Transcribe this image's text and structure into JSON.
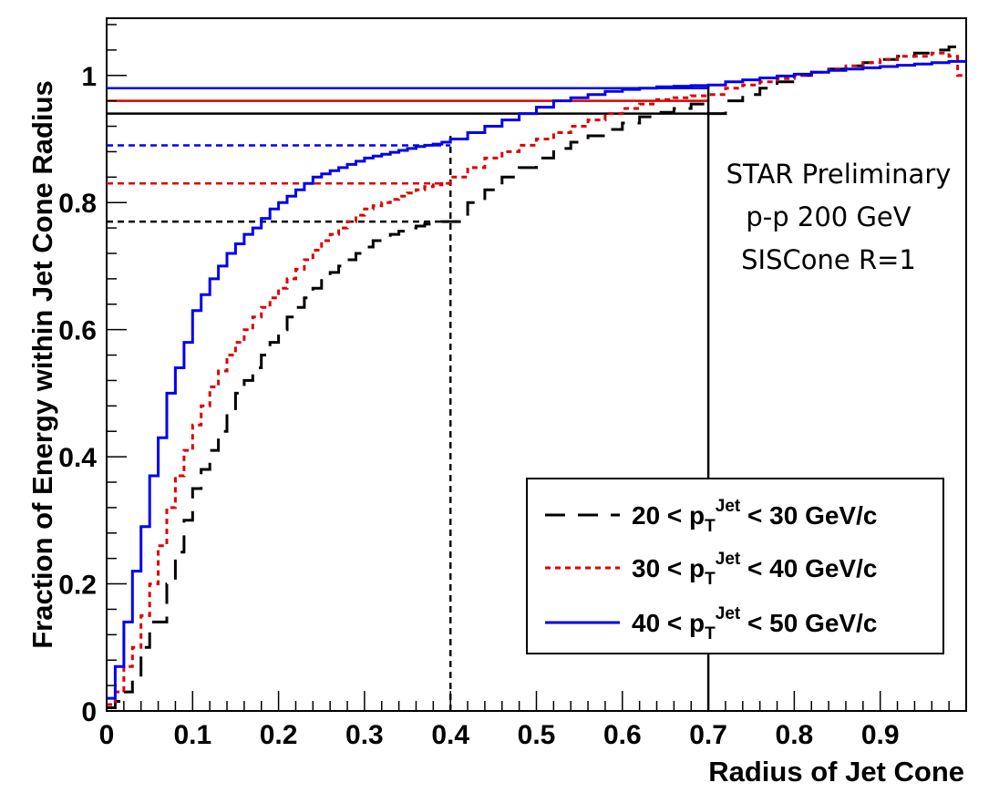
{
  "chart_data": {
    "type": "line",
    "title": "",
    "xlabel": "Radius of Jet Cone",
    "ylabel": "Fraction of Energy within Jet Cone Radius",
    "xlim": [
      0,
      1.0
    ],
    "ylim": [
      0,
      1.09
    ],
    "x_ticks": [
      0,
      0.1,
      0.2,
      0.3,
      0.4,
      0.5,
      0.6,
      0.7,
      0.8,
      0.9
    ],
    "x_tick_labels": [
      "0",
      "0.1",
      "0.2",
      "0.3",
      "0.4",
      "0.5",
      "0.6",
      "0.7",
      "0.8",
      "0.9"
    ],
    "y_ticks": [
      0,
      0.2,
      0.4,
      0.6,
      0.8,
      1
    ],
    "y_tick_labels": [
      "0",
      "0.2",
      "0.4",
      "0.6",
      "0.8",
      "1"
    ],
    "grid": false,
    "legend_position": "bottom-right",
    "annotation": [
      "STAR Preliminary",
      "p-p 200 GeV",
      "SISCone R=1"
    ],
    "series": [
      {
        "legend_prefix": "20 < p",
        "legend_sub": "T",
        "legend_sup": "Jet",
        "legend_suffix": " < 30 GeV/c",
        "color": "#000000",
        "dash": "22,14",
        "x": [
          0,
          0.01,
          0.02,
          0.03,
          0.04,
          0.05,
          0.06,
          0.07,
          0.08,
          0.09,
          0.1,
          0.11,
          0.12,
          0.13,
          0.14,
          0.15,
          0.16,
          0.17,
          0.18,
          0.19,
          0.2,
          0.21,
          0.22,
          0.23,
          0.24,
          0.25,
          0.26,
          0.27,
          0.28,
          0.29,
          0.3,
          0.31,
          0.32,
          0.33,
          0.34,
          0.35,
          0.36,
          0.37,
          0.38,
          0.39,
          0.4,
          0.42,
          0.44,
          0.46,
          0.48,
          0.5,
          0.52,
          0.54,
          0.56,
          0.58,
          0.6,
          0.62,
          0.64,
          0.66,
          0.68,
          0.7,
          0.72,
          0.74,
          0.76,
          0.78,
          0.8,
          0.82,
          0.84,
          0.86,
          0.88,
          0.9,
          0.92,
          0.94,
          0.96,
          0.98,
          0.99
        ],
        "y": [
          0.005,
          0.015,
          0.03,
          0.05,
          0.1,
          0.14,
          0.14,
          0.2,
          0.25,
          0.3,
          0.35,
          0.38,
          0.41,
          0.44,
          0.47,
          0.5,
          0.52,
          0.54,
          0.56,
          0.58,
          0.6,
          0.62,
          0.635,
          0.65,
          0.665,
          0.68,
          0.69,
          0.7,
          0.71,
          0.72,
          0.73,
          0.74,
          0.745,
          0.75,
          0.755,
          0.76,
          0.763,
          0.766,
          0.768,
          0.77,
          0.77,
          0.8,
          0.82,
          0.84,
          0.855,
          0.87,
          0.885,
          0.895,
          0.905,
          0.915,
          0.925,
          0.935,
          0.942,
          0.948,
          0.955,
          0.94,
          0.96,
          0.97,
          0.98,
          0.99,
          1.0,
          1.005,
          1.01,
          1.015,
          1.02,
          1.025,
          1.03,
          1.035,
          1.04,
          1.045,
          1.045
        ],
        "reference_level": 0.77,
        "reference_x": 0.4
      },
      {
        "legend_prefix": "30 < p",
        "legend_sub": "T",
        "legend_sup": "Jet",
        "legend_suffix": " < 40 GeV/c",
        "color": "#dd0000",
        "dash": "6,5",
        "x": [
          0,
          0.01,
          0.02,
          0.03,
          0.04,
          0.05,
          0.06,
          0.07,
          0.08,
          0.09,
          0.1,
          0.11,
          0.12,
          0.13,
          0.14,
          0.15,
          0.16,
          0.17,
          0.18,
          0.19,
          0.2,
          0.21,
          0.22,
          0.23,
          0.24,
          0.25,
          0.26,
          0.27,
          0.28,
          0.29,
          0.3,
          0.31,
          0.32,
          0.33,
          0.34,
          0.35,
          0.36,
          0.37,
          0.38,
          0.39,
          0.4,
          0.42,
          0.44,
          0.46,
          0.48,
          0.5,
          0.52,
          0.54,
          0.56,
          0.58,
          0.6,
          0.62,
          0.64,
          0.66,
          0.68,
          0.7,
          0.72,
          0.74,
          0.76,
          0.78,
          0.8,
          0.82,
          0.84,
          0.86,
          0.88,
          0.9,
          0.92,
          0.94,
          0.96,
          0.98,
          0.99
        ],
        "y": [
          0.01,
          0.03,
          0.07,
          0.1,
          0.15,
          0.2,
          0.26,
          0.32,
          0.37,
          0.41,
          0.45,
          0.48,
          0.51,
          0.535,
          0.56,
          0.58,
          0.6,
          0.62,
          0.635,
          0.65,
          0.665,
          0.68,
          0.695,
          0.71,
          0.725,
          0.74,
          0.75,
          0.76,
          0.77,
          0.78,
          0.79,
          0.795,
          0.8,
          0.805,
          0.81,
          0.815,
          0.82,
          0.825,
          0.828,
          0.83,
          0.84,
          0.855,
          0.87,
          0.88,
          0.89,
          0.9,
          0.91,
          0.92,
          0.93,
          0.94,
          0.948,
          0.955,
          0.962,
          0.965,
          0.968,
          0.97,
          0.98,
          0.985,
          0.99,
          0.995,
          1.0,
          1.005,
          1.01,
          1.015,
          1.02,
          1.025,
          1.03,
          1.03,
          1.035,
          1.03,
          1.0
        ],
        "reference_level": 0.83,
        "reference_x": 0.4
      },
      {
        "legend_prefix": "40 < p",
        "legend_sub": "T",
        "legend_sup": "Jet",
        "legend_suffix": " < 50 GeV/c",
        "color": "#0000ee",
        "dash": "",
        "x": [
          0,
          0.01,
          0.02,
          0.03,
          0.04,
          0.05,
          0.06,
          0.07,
          0.08,
          0.09,
          0.1,
          0.11,
          0.12,
          0.13,
          0.14,
          0.15,
          0.16,
          0.17,
          0.18,
          0.19,
          0.2,
          0.21,
          0.22,
          0.23,
          0.24,
          0.25,
          0.26,
          0.27,
          0.28,
          0.29,
          0.3,
          0.31,
          0.32,
          0.33,
          0.34,
          0.35,
          0.36,
          0.37,
          0.38,
          0.39,
          0.4,
          0.42,
          0.44,
          0.46,
          0.48,
          0.5,
          0.52,
          0.54,
          0.56,
          0.58,
          0.6,
          0.62,
          0.64,
          0.66,
          0.68,
          0.7,
          0.72,
          0.74,
          0.76,
          0.78,
          0.8,
          0.82,
          0.84,
          0.86,
          0.88,
          0.9,
          0.92,
          0.94,
          0.96,
          0.98,
          0.99
        ],
        "y": [
          0.02,
          0.07,
          0.14,
          0.22,
          0.29,
          0.37,
          0.43,
          0.5,
          0.54,
          0.58,
          0.63,
          0.655,
          0.68,
          0.7,
          0.72,
          0.735,
          0.75,
          0.76,
          0.775,
          0.79,
          0.8,
          0.81,
          0.82,
          0.83,
          0.84,
          0.845,
          0.85,
          0.855,
          0.86,
          0.865,
          0.87,
          0.873,
          0.876,
          0.879,
          0.882,
          0.885,
          0.888,
          0.89,
          0.892,
          0.895,
          0.9,
          0.91,
          0.92,
          0.93,
          0.94,
          0.95,
          0.96,
          0.965,
          0.97,
          0.975,
          0.978,
          0.98,
          0.982,
          0.983,
          0.984,
          0.985,
          0.99,
          0.993,
          0.996,
          0.999,
          1.002,
          1.005,
          1.008,
          1.01,
          1.012,
          1.014,
          1.016,
          1.018,
          1.02,
          1.022,
          1.022
        ],
        "reference_level": 0.89,
        "reference_x": 0.4
      }
    ],
    "r07_reference_levels": [
      {
        "color": "#000000",
        "y": 0.94
      },
      {
        "color": "#dd0000",
        "y": 0.96
      },
      {
        "color": "#0000ee",
        "y": 0.98
      }
    ],
    "vertical_markers": [
      {
        "x": 0.4,
        "style": "dashed"
      },
      {
        "x": 0.7,
        "style": "solid"
      }
    ]
  }
}
